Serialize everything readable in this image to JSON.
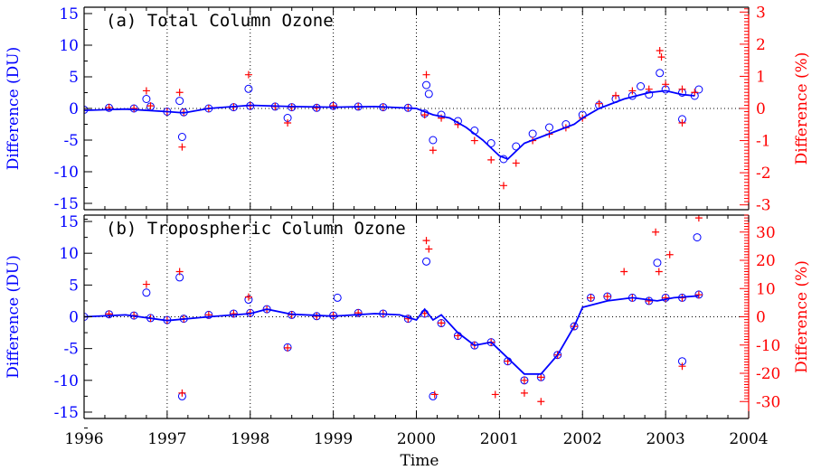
{
  "colors": {
    "du": "#0000ff",
    "pct": "#ff0000",
    "axis": "#000000",
    "zero_line": "#000000"
  },
  "xlabel": "Time",
  "x_ticks": [
    1996,
    1997,
    1998,
    1999,
    2000,
    2001,
    2002,
    2003,
    2004
  ],
  "x_tick_labels": [
    "1996",
    "1997",
    "1998",
    "1999",
    "2000",
    "2001",
    "2002",
    "2003",
    "2004"
  ],
  "chart_data": [
    {
      "type": "scatter",
      "title": "(a) Total Column Ozone",
      "xlim": [
        1996,
        2004
      ],
      "ylabel_left": "Difference (DU)",
      "ylabel_right": "Difference (%)",
      "ylim_left": [
        -16,
        16
      ],
      "ylim_right": [
        -3.15,
        3.15
      ],
      "yticks_left": [
        -15,
        -10,
        -5,
        0,
        5,
        10,
        15
      ],
      "yticks_right": [
        -3,
        -2,
        -1,
        0,
        1,
        2,
        3
      ],
      "grid": "vertical dotted lines at each year, horizontal dotted zero line",
      "series": [
        {
          "marker": "circle",
          "color": "#0000ff",
          "axis": "left",
          "x": [
            1996.0,
            1996.3,
            1996.6,
            1996.8,
            1997.0,
            1997.2,
            1997.5,
            1997.8,
            1998.0,
            1998.3,
            1998.5,
            1998.8,
            1999.0,
            1999.3,
            1999.6,
            1999.9,
            2000.1,
            2000.3,
            2000.5,
            2000.7,
            2000.9,
            2001.05,
            2001.2,
            2001.4,
            2001.6,
            2001.8,
            2002.0,
            2002.2,
            2002.4,
            2002.6,
            2002.8,
            2003.0,
            2003.2,
            2003.35
          ],
          "y": [
            -0.2,
            0.1,
            0.0,
            0.3,
            -0.5,
            -0.6,
            0.0,
            0.2,
            0.4,
            0.3,
            0.2,
            0.1,
            0.4,
            0.3,
            0.2,
            0.1,
            -0.8,
            -1.0,
            -2.0,
            -3.5,
            -5.5,
            -8.0,
            -6.0,
            -4.0,
            -3.0,
            -2.5,
            -1.0,
            0.5,
            1.5,
            2.0,
            2.2,
            3.0,
            2.5,
            2.0
          ]
        },
        {
          "marker": "circle",
          "color": "#0000ff",
          "axis": "left",
          "x": [
            1996.75,
            1997.15,
            1997.18,
            1997.98,
            1998.45,
            2000.12,
            2000.15,
            2000.2,
            2002.7,
            2002.93,
            2003.2,
            2003.4
          ],
          "y": [
            1.5,
            1.2,
            -4.5,
            3.1,
            -1.5,
            3.7,
            2.3,
            -5.0,
            3.5,
            5.6,
            -1.7,
            3.0
          ]
        },
        {
          "marker": "plus",
          "color": "#ff0000",
          "axis": "right",
          "x": [
            1996.0,
            1996.3,
            1996.6,
            1996.8,
            1997.0,
            1997.2,
            1997.5,
            1997.8,
            1998.0,
            1998.3,
            1998.5,
            1998.8,
            1999.0,
            1999.3,
            1999.6,
            1999.9,
            2000.1,
            2000.3,
            2000.5,
            2000.7,
            2000.9,
            2001.05,
            2001.2,
            2001.4,
            2001.6,
            2001.8,
            2002.0,
            2002.2,
            2002.4,
            2002.6,
            2002.8,
            2003.0,
            2003.2,
            2003.35
          ],
          "y": [
            -0.05,
            0.03,
            0.0,
            0.08,
            -0.1,
            -0.12,
            0.0,
            0.05,
            0.08,
            0.06,
            0.04,
            0.02,
            0.08,
            0.06,
            0.04,
            0.02,
            -0.2,
            -0.3,
            -0.5,
            -1.0,
            -1.6,
            -2.4,
            -1.7,
            -1.0,
            -0.8,
            -0.6,
            -0.3,
            0.15,
            0.4,
            0.55,
            0.6,
            0.75,
            0.6,
            0.5
          ]
        },
        {
          "marker": "plus",
          "color": "#ff0000",
          "axis": "right",
          "x": [
            1996.75,
            1997.15,
            1997.18,
            1997.98,
            1998.45,
            2000.12,
            2000.2,
            2002.93,
            2002.95,
            2003.2
          ],
          "y": [
            0.55,
            0.5,
            -1.2,
            1.05,
            -0.45,
            1.05,
            -1.3,
            1.8,
            1.6,
            -0.45
          ]
        }
      ],
      "trend": {
        "color": "#0000ff",
        "x": [
          1996.0,
          1996.5,
          1997.0,
          1997.2,
          1997.5,
          1998.0,
          1998.5,
          1999.0,
          1999.5,
          2000.0,
          2000.2,
          2000.4,
          2000.6,
          2000.8,
          2001.0,
          2001.1,
          2001.3,
          2001.5,
          2001.7,
          2001.9,
          2002.0,
          2002.2,
          2002.5,
          2002.8,
          2003.0,
          2003.2,
          2003.35
        ],
        "y": [
          -0.3,
          -0.1,
          -0.5,
          -0.7,
          0.0,
          0.5,
          0.3,
          0.2,
          0.3,
          0.0,
          -1.0,
          -1.5,
          -3.0,
          -5.0,
          -7.5,
          -8.0,
          -5.5,
          -4.5,
          -3.5,
          -2.5,
          -1.5,
          0.0,
          1.5,
          2.5,
          2.8,
          2.2,
          2.0
        ]
      }
    },
    {
      "type": "scatter",
      "title": "(b) Tropospheric Column Ozone",
      "xlim": [
        1996,
        2004
      ],
      "ylabel_left": "Difference (DU)",
      "ylabel_right": "Difference (%)",
      "ylim_left": [
        -16,
        16
      ],
      "ylim_right": [
        -36,
        36
      ],
      "yticks_left": [
        -15,
        -10,
        -5,
        0,
        5,
        10,
        15
      ],
      "yticks_right": [
        -30,
        -20,
        -10,
        0,
        10,
        20,
        30
      ],
      "grid": "vertical dotted lines at each year, horizontal dotted zero line",
      "series": [
        {
          "marker": "circle",
          "color": "#0000ff",
          "axis": "left",
          "x": [
            1996.0,
            1996.3,
            1996.6,
            1996.8,
            1997.0,
            1997.2,
            1997.5,
            1997.8,
            1998.0,
            1998.2,
            1998.5,
            1998.8,
            1999.0,
            1999.3,
            1999.6,
            1999.9,
            2000.1,
            2000.3,
            2000.5,
            2000.7,
            2000.9,
            2001.1,
            2001.3,
            2001.5,
            2001.7,
            2001.9,
            2002.1,
            2002.3,
            2002.6,
            2002.8,
            2003.0,
            2003.2,
            2003.4
          ],
          "y": [
            0.0,
            0.4,
            0.2,
            -0.2,
            -0.5,
            -0.3,
            0.3,
            0.5,
            0.6,
            1.2,
            0.3,
            0.1,
            0.2,
            0.6,
            0.5,
            -0.3,
            0.5,
            -1.0,
            -3.0,
            -4.5,
            -4.0,
            -7.0,
            -10.0,
            -9.5,
            -6.0,
            -1.5,
            3.0,
            3.2,
            3.0,
            2.5,
            3.0,
            3.0,
            3.5
          ]
        },
        {
          "marker": "circle",
          "color": "#0000ff",
          "axis": "left",
          "x": [
            1996.75,
            1997.15,
            1997.18,
            1997.98,
            1998.45,
            1999.05,
            2000.12,
            2000.2,
            2002.9,
            2003.2,
            2003.38
          ],
          "y": [
            3.8,
            6.2,
            -12.5,
            2.7,
            -4.8,
            3.0,
            8.7,
            -12.5,
            8.5,
            -7.0,
            12.5
          ]
        },
        {
          "marker": "plus",
          "color": "#ff0000",
          "axis": "right",
          "x": [
            1996.0,
            1996.3,
            1996.6,
            1996.8,
            1997.0,
            1997.2,
            1997.5,
            1997.8,
            1998.0,
            1998.2,
            1998.5,
            1998.8,
            1999.0,
            1999.3,
            1999.6,
            1999.9,
            2000.1,
            2000.3,
            2000.5,
            2000.7,
            2000.9,
            2001.1,
            2001.3,
            2001.5,
            2001.7,
            2001.9,
            2002.1,
            2002.3,
            2002.6,
            2002.8,
            2003.0,
            2003.2,
            2003.4
          ],
          "y": [
            0.0,
            1.0,
            0.5,
            -0.5,
            -1.2,
            -0.7,
            0.7,
            1.1,
            1.4,
            2.7,
            0.7,
            0.2,
            0.5,
            1.4,
            1.1,
            -0.7,
            1.2,
            -2.2,
            -6.7,
            -10.0,
            -9.0,
            -15.7,
            -22.5,
            -21.4,
            -13.5,
            -3.4,
            6.7,
            7.2,
            6.7,
            5.6,
            6.7,
            6.7,
            7.8
          ]
        },
        {
          "marker": "plus",
          "color": "#ff0000",
          "axis": "right",
          "x": [
            1996.75,
            1997.15,
            1997.18,
            1997.98,
            1998.45,
            2000.12,
            2000.15,
            2000.22,
            2000.95,
            2001.3,
            2001.5,
            2002.5,
            2002.88,
            2002.92,
            2003.05,
            2003.2,
            2003.4
          ],
          "y": [
            11.5,
            16.0,
            -27.0,
            7.0,
            -11.0,
            27.0,
            24.0,
            -27.5,
            -27.5,
            -27.0,
            -30.0,
            16.0,
            30.0,
            16.0,
            22.0,
            -17.5,
            35.0
          ]
        }
      ],
      "trend": {
        "color": "#0000ff",
        "x": [
          1996.0,
          1996.5,
          1997.0,
          1997.5,
          1998.0,
          1998.2,
          1998.5,
          1999.0,
          1999.5,
          1999.8,
          2000.0,
          2000.1,
          2000.2,
          2000.3,
          2000.5,
          2000.7,
          2000.9,
          2001.1,
          2001.3,
          2001.5,
          2001.7,
          2001.9,
          2002.0,
          2002.3,
          2002.6,
          2002.9,
          2003.1,
          2003.4
        ],
        "y": [
          0.0,
          0.3,
          -0.6,
          0.0,
          0.5,
          1.2,
          0.4,
          0.1,
          0.5,
          0.3,
          -0.5,
          1.2,
          -0.5,
          0.3,
          -2.5,
          -4.5,
          -4.0,
          -6.5,
          -9.0,
          -9.0,
          -6.0,
          -1.5,
          1.5,
          2.5,
          3.0,
          2.5,
          3.0,
          3.3
        ]
      }
    }
  ]
}
